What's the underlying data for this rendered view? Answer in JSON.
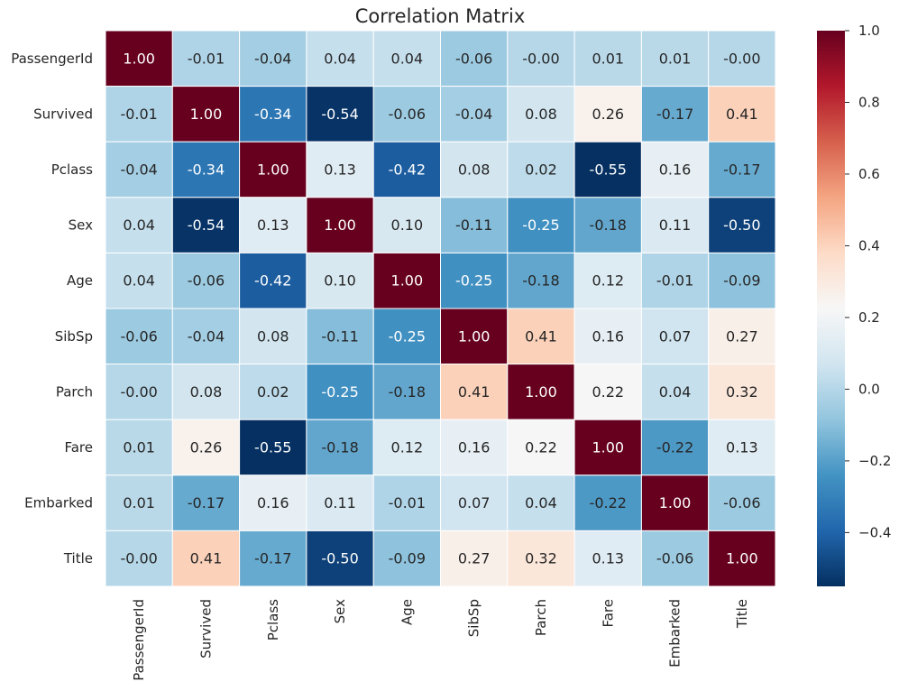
{
  "chart_data": {
    "type": "heatmap",
    "title": "Correlation Matrix",
    "xlabel": "",
    "ylabel": "",
    "rows": [
      "PassengerId",
      "Survived",
      "Pclass",
      "Sex",
      "Age",
      "SibSp",
      "Parch",
      "Fare",
      "Embarked",
      "Title"
    ],
    "columns": [
      "PassengerId",
      "Survived",
      "Pclass",
      "Sex",
      "Age",
      "SibSp",
      "Parch",
      "Fare",
      "Embarked",
      "Title"
    ],
    "values": [
      [
        1.0,
        -0.01,
        -0.04,
        0.04,
        0.04,
        -0.06,
        -0.0,
        0.01,
        0.01,
        -0.0
      ],
      [
        -0.01,
        1.0,
        -0.34,
        -0.54,
        -0.06,
        -0.04,
        0.08,
        0.26,
        -0.17,
        0.41
      ],
      [
        -0.04,
        -0.34,
        1.0,
        0.13,
        -0.42,
        0.08,
        0.02,
        -0.55,
        0.16,
        -0.17
      ],
      [
        0.04,
        -0.54,
        0.13,
        1.0,
        0.1,
        -0.11,
        -0.25,
        -0.18,
        0.11,
        -0.5
      ],
      [
        0.04,
        -0.06,
        -0.42,
        0.1,
        1.0,
        -0.25,
        -0.18,
        0.12,
        -0.01,
        -0.09
      ],
      [
        -0.06,
        -0.04,
        0.08,
        -0.11,
        -0.25,
        1.0,
        0.41,
        0.16,
        0.07,
        0.27
      ],
      [
        -0.0,
        0.08,
        0.02,
        -0.25,
        -0.18,
        0.41,
        1.0,
        0.22,
        0.04,
        0.32
      ],
      [
        0.01,
        0.26,
        -0.55,
        -0.18,
        0.12,
        0.16,
        0.22,
        1.0,
        -0.22,
        0.13
      ],
      [
        0.01,
        -0.17,
        0.16,
        0.11,
        -0.01,
        0.07,
        0.04,
        -0.22,
        1.0,
        -0.06
      ],
      [
        -0.0,
        0.41,
        -0.17,
        -0.5,
        -0.09,
        0.27,
        0.32,
        0.13,
        -0.06,
        1.0
      ]
    ],
    "value_labels": [
      [
        "1.00",
        "-0.01",
        "-0.04",
        "0.04",
        "0.04",
        "-0.06",
        "-0.00",
        "0.01",
        "0.01",
        "-0.00"
      ],
      [
        "-0.01",
        "1.00",
        "-0.34",
        "-0.54",
        "-0.06",
        "-0.04",
        "0.08",
        "0.26",
        "-0.17",
        "0.41"
      ],
      [
        "-0.04",
        "-0.34",
        "1.00",
        "0.13",
        "-0.42",
        "0.08",
        "0.02",
        "-0.55",
        "0.16",
        "-0.17"
      ],
      [
        "0.04",
        "-0.54",
        "0.13",
        "1.00",
        "0.10",
        "-0.11",
        "-0.25",
        "-0.18",
        "0.11",
        "-0.50"
      ],
      [
        "0.04",
        "-0.06",
        "-0.42",
        "0.10",
        "1.00",
        "-0.25",
        "-0.18",
        "0.12",
        "-0.01",
        "-0.09"
      ],
      [
        "-0.06",
        "-0.04",
        "0.08",
        "-0.11",
        "-0.25",
        "1.00",
        "0.41",
        "0.16",
        "0.07",
        "0.27"
      ],
      [
        "-0.00",
        "0.08",
        "0.02",
        "-0.25",
        "-0.18",
        "0.41",
        "1.00",
        "0.22",
        "0.04",
        "0.32"
      ],
      [
        "0.01",
        "0.26",
        "-0.55",
        "-0.18",
        "0.12",
        "0.16",
        "0.22",
        "1.00",
        "-0.22",
        "0.13"
      ],
      [
        "0.01",
        "-0.17",
        "0.16",
        "0.11",
        "-0.01",
        "0.07",
        "0.04",
        "-0.22",
        "1.00",
        "-0.06"
      ],
      [
        "-0.00",
        "0.41",
        "-0.17",
        "-0.50",
        "-0.09",
        "0.27",
        "0.32",
        "0.13",
        "-0.06",
        "1.00"
      ]
    ],
    "colorbar": {
      "colormap": "RdBu_r",
      "vmin": -0.55,
      "vmax": 1.0,
      "ticks": [
        -0.4,
        -0.2,
        0.0,
        0.2,
        0.4,
        0.6,
        0.8,
        1.0
      ],
      "tick_labels": [
        "−0.4",
        "−0.2",
        "0.0",
        "0.2",
        "0.4",
        "0.6",
        "0.8",
        "1.0"
      ],
      "color_stops": [
        "#053061",
        "#2166ac",
        "#4393c3",
        "#92c5de",
        "#d1e5f0",
        "#f7f7f7",
        "#fddbc7",
        "#f4a582",
        "#d6604d",
        "#b2182b",
        "#67001f"
      ]
    },
    "grid": false,
    "cell_borders": "white",
    "annotations": true
  }
}
